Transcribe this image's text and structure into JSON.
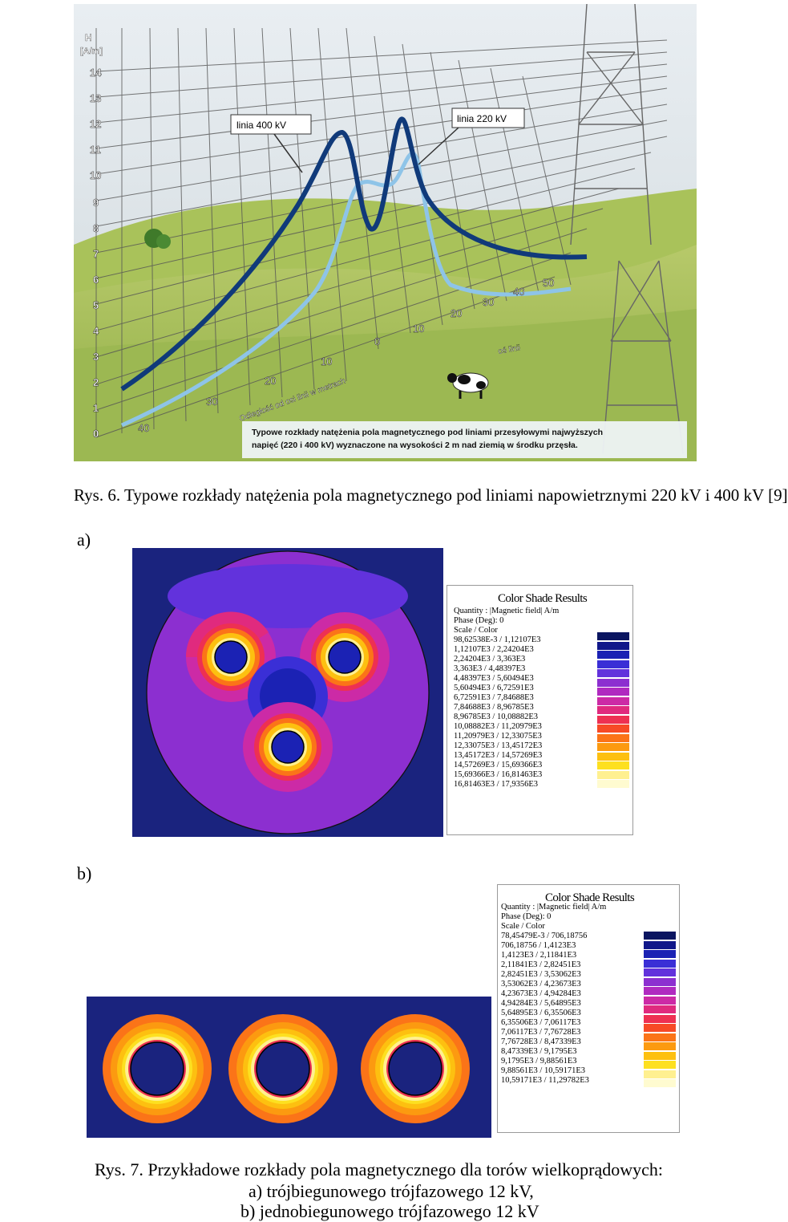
{
  "figure6": {
    "axis_unit_H": "H",
    "axis_unit_Am": "[A/m]",
    "y_ticks": [
      "14",
      "13",
      "12",
      "11",
      "10",
      "9",
      "8",
      "7",
      "6",
      "5",
      "4",
      "3",
      "2",
      "1",
      "0"
    ],
    "x_ticks_left": [
      "40",
      "30",
      "20",
      "10",
      "0"
    ],
    "x_ticks_right": [
      "10",
      "20",
      "30",
      "40",
      "50"
    ],
    "distance_label": "Odległość od osi linii w metrach",
    "axis_label_right": "oś linii",
    "label_400": "linia 400 kV",
    "label_220": "linia 220 kV",
    "info_line1": "Typowe rozkłady natężenia pola magnetycznego pod liniami przesyłowymi najwyższych",
    "info_line2": "napięć (220 i 400 kV) wyznaczone na wysokości 2 m nad ziemią w środku przęsła.",
    "caption": "Rys. 6. Typowe rozkłady natężenia pola magnetycznego pod liniami napowietrznymi 220 kV i 400 kV [9]"
  },
  "figure7": {
    "label_a": "a)",
    "label_b": "b)",
    "caption_line1": "Rys. 7. Przykładowe rozkłady pola magnetycznego dla torów wielkoprądowych:",
    "caption_line2": "a)   trójbiegunowego trójfazowego 12 kV,",
    "caption_line3": "b)   jednobiegunowego trójfazowego 12 kV"
  },
  "legend_a": {
    "title": "Color Shade Results",
    "quantity": "Quantity : |Magnetic field| A/m",
    "phase": "Phase (Deg): 0",
    "scale": "Scale / Color",
    "rows": [
      "98,62538E-3  /  1,12107E3",
      "1,12107E3  /  2,24204E3",
      "2,24204E3  /  3,363E3",
      "3,363E3  /  4,48397E3",
      "4,48397E3  /  5,60494E3",
      "5,60494E3  /  6,72591E3",
      "6,72591E3  /  7,84688E3",
      "7,84688E3  /  8,96785E3",
      "8,96785E3  /  10,08882E3",
      "10,08882E3  /  11,20979E3",
      "11,20979E3  /  12,33075E3",
      "12,33075E3  /  13,45172E3",
      "13,45172E3  /  14,57269E3",
      "14,57269E3  /  15,69366E3",
      "15,69366E3  /  16,81463E3",
      "16,81463E3  /  17,9356E3"
    ]
  },
  "legend_b": {
    "title": "Color Shade Results",
    "quantity": "Quantity : |Magnetic field| A/m",
    "phase": "Phase (Deg): 0",
    "scale": "Scale / Color",
    "rows": [
      "78,45479E-3  /  706,18756",
      "706,18756  /  1,4123E3",
      "1,4123E3  /  2,11841E3",
      "2,11841E3  /  2,82451E3",
      "2,82451E3  /  3,53062E3",
      "3,53062E3  /  4,23673E3",
      "4,23673E3  /  4,94284E3",
      "4,94284E3  /  5,64895E3",
      "5,64895E3  /  6,35506E3",
      "6,35506E3  /  7,06117E3",
      "7,06117E3  /  7,76728E3",
      "7,76728E3  /  8,47339E3",
      "8,47339E3  /  9,1795E3",
      "9,1795E3  /  9,88561E3",
      "9,88561E3  /  10,59171E3",
      "10,59171E3  /  11,29782E3"
    ]
  },
  "palette": [
    "#0a1560",
    "#10178a",
    "#1b22b4",
    "#3a2fd6",
    "#6232dc",
    "#8c2fd0",
    "#b02ac0",
    "#cc2aa6",
    "#e02a7e",
    "#ee3052",
    "#f74a26",
    "#fb7418",
    "#fc9a10",
    "#fdc010",
    "#fde020",
    "#fff090",
    "#fffbd0"
  ]
}
